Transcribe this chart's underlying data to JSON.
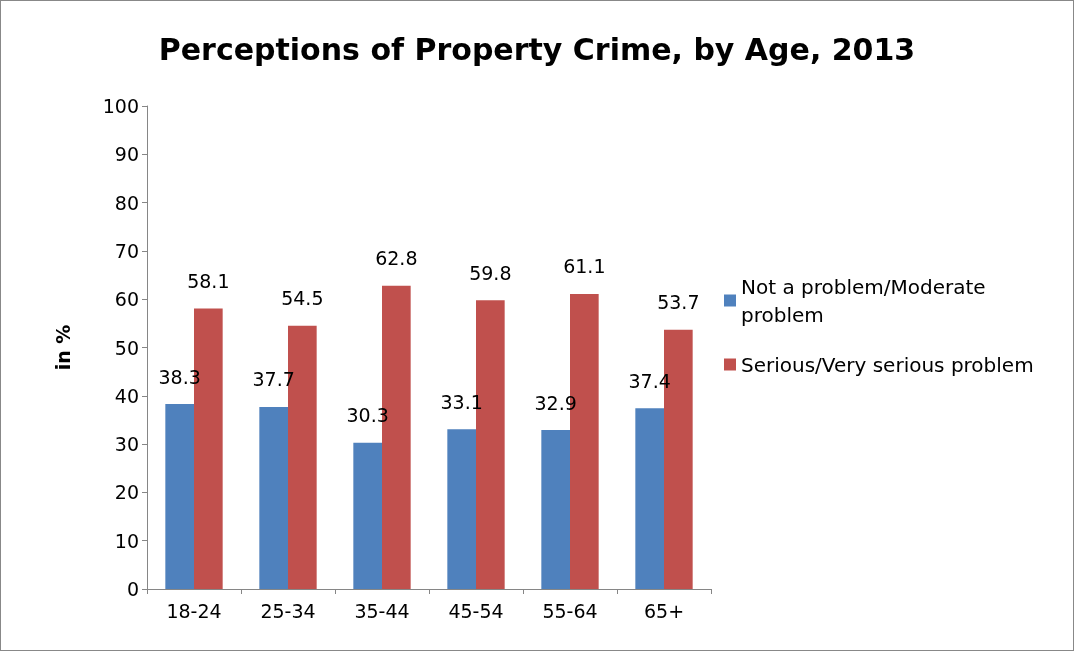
{
  "chart_data": {
    "type": "bar",
    "title": "Perceptions of Property Crime, by Age, 2013",
    "ylabel": "in %",
    "categories": [
      "18-24",
      "25-34",
      "35-44",
      "45-54",
      "55-64",
      "65+"
    ],
    "series": [
      {
        "name": "Not a problem/Moderate problem",
        "color": "#4f81bd",
        "values": [
          38.3,
          37.7,
          30.3,
          33.1,
          32.9,
          37.4
        ]
      },
      {
        "name": "Serious/Very serious problem",
        "color": "#c0504d",
        "values": [
          58.1,
          54.5,
          62.8,
          59.8,
          61.1,
          53.7
        ]
      }
    ],
    "ylim": [
      0,
      100
    ],
    "yticks": [
      0,
      10,
      20,
      30,
      40,
      50,
      60,
      70,
      80,
      90,
      100
    ],
    "grid": false,
    "legend": "right",
    "data_labels": true
  }
}
